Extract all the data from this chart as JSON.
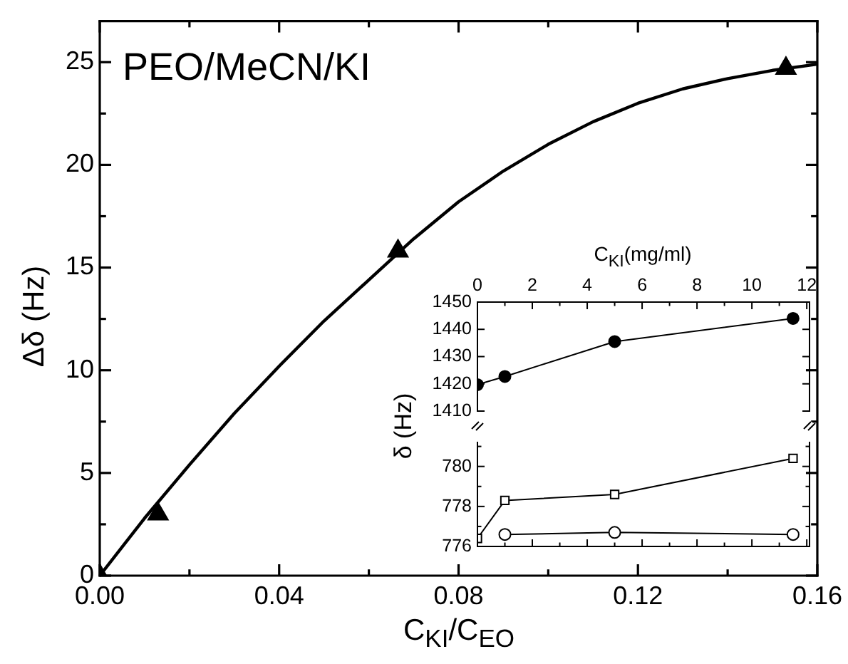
{
  "chart_data": [
    {
      "type": "scatter",
      "title": "PEO/MeCN/KI",
      "xlabel": "C$_{KI}$/C$_{EO}$",
      "ylabel": "Δδ (Hz)",
      "xlim": [
        0,
        0.16
      ],
      "ylim": [
        0,
        27
      ],
      "xticks": [
        {
          "value": 0,
          "label": "0.00"
        },
        {
          "value": 0.02,
          "label": null
        },
        {
          "value": 0.04,
          "label": "0.04"
        },
        {
          "value": 0.06,
          "label": null
        },
        {
          "value": 0.08,
          "label": "0.08"
        },
        {
          "value": 0.1,
          "label": null
        },
        {
          "value": 0.12,
          "label": "0.12"
        },
        {
          "value": 0.14,
          "label": null
        },
        {
          "value": 0.16,
          "label": "0.16"
        }
      ],
      "yticks": [
        0,
        {
          "value": 2.5,
          "label": null
        },
        5,
        {
          "value": 7.5,
          "label": null
        },
        10,
        {
          "value": 12.5,
          "label": null
        },
        15,
        {
          "value": 17.5,
          "label": null
        },
        20,
        {
          "value": 22.5,
          "label": null
        },
        25
      ],
      "series": [
        {
          "type": "scatter",
          "marker": "triangle",
          "color": "#000000",
          "x": [
            0,
            0.013,
            0.0665,
            0.153
          ],
          "values": [
            0,
            3.0,
            15.8,
            24.7
          ]
        },
        {
          "type": "line",
          "marker": "none",
          "color": "#000000",
          "x": [
            0,
            0.01,
            0.02,
            0.03,
            0.04,
            0.05,
            0.06,
            0.07,
            0.08,
            0.09,
            0.1,
            0.11,
            0.12,
            0.13,
            0.14,
            0.15,
            0.16
          ],
          "values": [
            0,
            2.8,
            5.4,
            7.9,
            10.2,
            12.4,
            14.4,
            16.4,
            18.2,
            19.7,
            21.0,
            22.1,
            23.0,
            23.7,
            24.2,
            24.6,
            24.9
          ]
        }
      ]
    },
    {
      "type": "line",
      "xlabel": "C$_{KI}$(mg/ml)",
      "ylabel": "δ (Hz)",
      "xlim": [
        0,
        12.1
      ],
      "ylim": [
        1410,
        1450
      ],
      "xticks": [
        0,
        {
          "value": 1,
          "label": null
        },
        2,
        {
          "value": 3,
          "label": null
        },
        4,
        {
          "value": 5,
          "label": null
        },
        6,
        {
          "value": 7,
          "label": null
        },
        8,
        {
          "value": 9,
          "label": null
        },
        10,
        {
          "value": 11,
          "label": null
        },
        12
      ],
      "yticks": [
        1410,
        1420,
        1430,
        1440,
        1450
      ],
      "x": [
        0,
        1,
        5,
        11.5
      ],
      "series": [
        {
          "marker": "circle",
          "color": "#000000",
          "values": [
            1419.7,
            1422.7,
            1435.5,
            1444
          ]
        }
      ]
    },
    {
      "type": "line",
      "xlim": [
        0,
        12.1
      ],
      "ylim": [
        776,
        781.2
      ],
      "tick_labels": "y",
      "xticks": [
        0,
        {
          "value": 1,
          "label": null
        },
        2,
        {
          "value": 3,
          "label": null
        },
        4,
        {
          "value": 5,
          "label": null
        },
        6,
        {
          "value": 7,
          "label": null
        },
        8,
        {
          "value": 9,
          "label": null
        },
        10,
        {
          "value": 11,
          "label": null
        },
        12
      ],
      "yticks": [
        776,
        {
          "value": 777,
          "label": null
        },
        778,
        {
          "value": 779,
          "label": null
        },
        780,
        {
          "value": 781,
          "label": null
        }
      ],
      "x": [
        0,
        1,
        5,
        11.5
      ],
      "series": [
        {
          "marker": "square",
          "color": "#000000",
          "values": [
            776.4,
            778.3,
            778.6,
            780.4
          ]
        },
        {
          "marker": "circle",
          "color": "#000000",
          "values": [
            null,
            776.6,
            776.7,
            776.6
          ]
        }
      ]
    }
  ]
}
